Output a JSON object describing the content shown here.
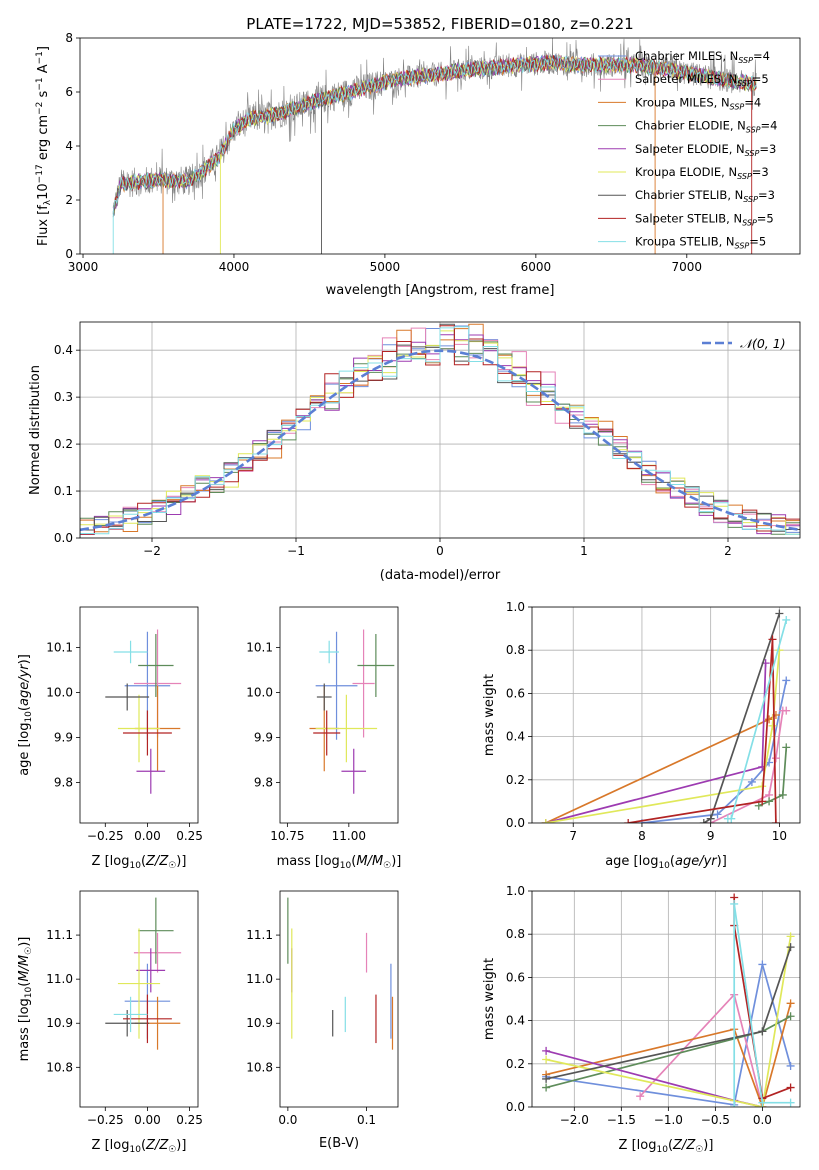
{
  "title": "PLATE=1722, MJD=53852, FIBERID=0180, z=0.221",
  "legend_entries": [
    {
      "text": "Chabrier MILES, N",
      "sub": "SSP",
      "tail": "=4",
      "color": "#6f8fdc"
    },
    {
      "text": "Salpeter MILES, N",
      "sub": "SSP",
      "tail": "=5",
      "color": "#e583b8"
    },
    {
      "text": "Kroupa MILES, N",
      "sub": "SSP",
      "tail": "=4",
      "color": "#d8782a"
    },
    {
      "text": "Chabrier ELODIE, N",
      "sub": "SSP",
      "tail": "=4",
      "color": "#5e8c5a"
    },
    {
      "text": "Salpeter ELODIE, N",
      "sub": "SSP",
      "tail": "=3",
      "color": "#9d3bb1"
    },
    {
      "text": "Kroupa ELODIE, N",
      "sub": "SSP",
      "tail": "=3",
      "color": "#e0e85a"
    },
    {
      "text": "Chabrier STELIB, N",
      "sub": "SSP",
      "tail": "=3",
      "color": "#555555"
    },
    {
      "text": "Salpeter STELIB, N",
      "sub": "SSP",
      "tail": "=5",
      "color": "#b22323"
    },
    {
      "text": "Kroupa STELIB, N",
      "sub": "SSP",
      "tail": "=5",
      "color": "#84dfe6"
    }
  ],
  "chart_data": [
    {
      "id": "spectrum",
      "type": "line",
      "title": "PLATE=1722, MJD=53852, FIBERID=0180, z=0.221",
      "xlabel": "wavelength [Angstrom, rest frame]",
      "ylabel": "Flux [f_λ 10^-17 erg cm^-2 s^-1 A^-1]",
      "xlim": [
        2980,
        7750
      ],
      "ylim": [
        0,
        8
      ],
      "xticks": [
        3000,
        4000,
        5000,
        6000,
        7000
      ],
      "yticks": [
        0,
        2,
        4,
        6,
        8
      ],
      "continuum": {
        "x": [
          3200,
          3250,
          3500,
          3700,
          3800,
          3900,
          4000,
          4100,
          4300,
          4500,
          4700,
          4900,
          5100,
          5300,
          5500,
          5700,
          5900,
          6100,
          6300,
          6500,
          6700,
          6900,
          7100,
          7300,
          7450
        ],
        "y": [
          1.6,
          2.6,
          2.75,
          2.7,
          3.1,
          3.6,
          4.6,
          5.0,
          5.2,
          5.6,
          5.9,
          6.2,
          6.5,
          6.6,
          6.8,
          6.9,
          7.0,
          7.1,
          7.0,
          7.0,
          7.0,
          6.8,
          6.6,
          6.4,
          6.3
        ]
      }
    },
    {
      "id": "residuals",
      "type": "step",
      "xlabel": "(data-model)/error",
      "ylabel": "Normed distribution",
      "xlim": [
        -2.5,
        2.5
      ],
      "ylim": [
        0,
        0.46
      ],
      "xticks": [
        -2,
        -1,
        0,
        1,
        2
      ],
      "yticks": [
        0.0,
        0.1,
        0.2,
        0.3,
        0.4
      ],
      "gauss_label": "𝒩(0, 1)",
      "grid": true
    },
    {
      "id": "age_vs_Z",
      "type": "errorbar",
      "xlabel": "Z [log10(Z/Z☉)]",
      "ylabel": "age  [log10(age/yr)]",
      "xlim": [
        -0.4,
        0.3
      ],
      "ylim": [
        9.71,
        10.19
      ],
      "xticks": [
        -0.25,
        0.0,
        0.25
      ],
      "yticks": [
        9.8,
        9.9,
        10.0,
        10.1
      ],
      "points": [
        {
          "x": 0.0,
          "xerr": 0.27,
          "y": 10.015,
          "yerr": 0.24
        },
        {
          "x": 0.06,
          "xerr": 0.28,
          "y": 10.02,
          "yerr": 0.24
        },
        {
          "x": 0.06,
          "xerr": 0.27,
          "y": 9.92,
          "yerr": 0.19
        },
        {
          "x": 0.05,
          "xerr": 0.21,
          "y": 10.06,
          "yerr": 0.14
        },
        {
          "x": 0.02,
          "xerr": 0.17,
          "y": 9.825,
          "yerr": 0.1
        },
        {
          "x": -0.05,
          "xerr": 0.25,
          "y": 9.92,
          "yerr": 0.15
        },
        {
          "x": -0.12,
          "xerr": 0.26,
          "y": 9.99,
          "yerr": 0.06
        },
        {
          "x": 0.0,
          "xerr": 0.29,
          "y": 9.91,
          "yerr": 0.1
        },
        {
          "x": -0.1,
          "xerr": 0.2,
          "y": 10.09,
          "yerr": 0.05
        }
      ]
    },
    {
      "id": "age_vs_mass",
      "type": "errorbar",
      "xlabel": "mass [log10(M/M☉)]",
      "ylabel": "",
      "xlim": [
        10.72,
        11.2
      ],
      "ylim": [
        9.71,
        10.19
      ],
      "xticks": [
        10.75,
        11.0
      ],
      "yticks": [
        9.8,
        9.9,
        10.0,
        10.1
      ],
      "points": [
        {
          "x": 10.95,
          "xerr": 0.17,
          "y": 10.015,
          "yerr": 0.24
        },
        {
          "x": 11.06,
          "xerr": 0.09,
          "y": 10.02,
          "yerr": 0.24
        },
        {
          "x": 10.9,
          "xerr": 0.12,
          "y": 9.92,
          "yerr": 0.19
        },
        {
          "x": 11.11,
          "xerr": 0.15,
          "y": 10.06,
          "yerr": 0.14
        },
        {
          "x": 11.02,
          "xerr": 0.1,
          "y": 9.825,
          "yerr": 0.1
        },
        {
          "x": 10.99,
          "xerr": 0.25,
          "y": 9.92,
          "yerr": 0.15
        },
        {
          "x": 10.9,
          "xerr": 0.06,
          "y": 9.99,
          "yerr": 0.06
        },
        {
          "x": 10.91,
          "xerr": 0.11,
          "y": 9.91,
          "yerr": 0.1
        },
        {
          "x": 10.92,
          "xerr": 0.08,
          "y": 10.09,
          "yerr": 0.05
        }
      ]
    },
    {
      "id": "weight_vs_age",
      "type": "line",
      "xlabel": "age  [log10(age/yr)]",
      "ylabel": "mass weight",
      "xlim": [
        6.4,
        10.3
      ],
      "ylim": [
        0,
        1
      ],
      "xticks": [
        7,
        8,
        9,
        10
      ],
      "yticks": [
        0.0,
        0.2,
        0.4,
        0.6,
        0.8,
        1.0
      ],
      "grid": true,
      "series": [
        {
          "x": [
            8.0,
            9.1,
            9.6,
            9.85,
            10.1
          ],
          "y": [
            0.0,
            0.04,
            0.19,
            0.28,
            0.66
          ]
        },
        {
          "x": [
            9.0,
            9.85,
            9.95,
            10.05,
            10.1
          ],
          "y": [
            0.0,
            0.13,
            0.3,
            0.52,
            0.52
          ]
        },
        {
          "x": [
            6.6,
            9.85,
            9.95
          ],
          "y": [
            0.0,
            0.48,
            0.5
          ]
        },
        {
          "x": [
            9.7,
            9.85,
            10.05,
            10.1
          ],
          "y": [
            0.08,
            0.1,
            0.13,
            0.35
          ]
        },
        {
          "x": [
            6.6,
            9.75,
            9.8
          ],
          "y": [
            0.0,
            0.26,
            0.74
          ]
        },
        {
          "x": [
            6.6,
            9.75,
            9.9,
            10.0
          ],
          "y": [
            0.0,
            0.17,
            0.45,
            0.8
          ]
        },
        {
          "x": [
            8.9,
            9.0,
            10.0
          ],
          "y": [
            0.0,
            0.02,
            0.97
          ]
        },
        {
          "x": [
            7.8,
            9.75,
            9.9,
            9.95
          ],
          "y": [
            0.0,
            0.1,
            0.85,
            0.0
          ]
        },
        {
          "x": [
            9.25,
            9.3,
            10.1
          ],
          "y": [
            0.02,
            0.02,
            0.94
          ]
        }
      ]
    },
    {
      "id": "mass_vs_Z",
      "type": "errorbar",
      "xlabel": "Z [log10(Z/Z☉)]",
      "ylabel": "mass [log10(M/M☉)]",
      "xlim": [
        -0.4,
        0.3
      ],
      "ylim": [
        10.71,
        11.2
      ],
      "xticks": [
        -0.25,
        0.0,
        0.25
      ],
      "yticks": [
        10.8,
        10.9,
        11.0,
        11.1
      ],
      "points": [
        {
          "x": 0.0,
          "xerr": 0.27,
          "y": 10.95,
          "yerr": 0.17
        },
        {
          "x": 0.06,
          "xerr": 0.28,
          "y": 11.06,
          "yerr": 0.09
        },
        {
          "x": 0.06,
          "xerr": 0.27,
          "y": 10.9,
          "yerr": 0.12
        },
        {
          "x": 0.05,
          "xerr": 0.21,
          "y": 11.11,
          "yerr": 0.15
        },
        {
          "x": 0.02,
          "xerr": 0.17,
          "y": 11.02,
          "yerr": 0.1
        },
        {
          "x": -0.05,
          "xerr": 0.25,
          "y": 10.99,
          "yerr": 0.25
        },
        {
          "x": -0.12,
          "xerr": 0.26,
          "y": 10.9,
          "yerr": 0.06
        },
        {
          "x": 0.0,
          "xerr": 0.29,
          "y": 10.91,
          "yerr": 0.11
        },
        {
          "x": -0.1,
          "xerr": 0.2,
          "y": 10.92,
          "yerr": 0.08
        }
      ]
    },
    {
      "id": "mass_vs_EBV",
      "type": "errorbar",
      "xlabel": "E(B-V)",
      "ylabel": "",
      "xlim": [
        -0.01,
        0.14
      ],
      "ylim": [
        10.71,
        11.2
      ],
      "xticks": [
        0.0,
        0.1
      ],
      "yticks": [
        10.8,
        10.9,
        11.0,
        11.1
      ],
      "points": [
        {
          "x": 0.131,
          "y": 10.95,
          "yerr": 0.17
        },
        {
          "x": 0.1,
          "y": 11.06,
          "yerr": 0.09
        },
        {
          "x": 0.133,
          "y": 10.9,
          "yerr": 0.12
        },
        {
          "x": 0.0,
          "y": 11.11,
          "yerr": 0.15
        },
        {
          "x": 0.005,
          "y": 11.02,
          "yerr": 0.1
        },
        {
          "x": 0.005,
          "y": 10.99,
          "yerr": 0.25
        },
        {
          "x": 0.057,
          "y": 10.9,
          "yerr": 0.06
        },
        {
          "x": 0.112,
          "y": 10.91,
          "yerr": 0.11
        },
        {
          "x": 0.073,
          "y": 10.92,
          "yerr": 0.08
        }
      ]
    },
    {
      "id": "weight_vs_Z",
      "type": "line",
      "xlabel": "Z [log10(Z/Z☉)]",
      "ylabel": "mass weight",
      "xlim": [
        -2.45,
        0.4
      ],
      "ylim": [
        0,
        1
      ],
      "xticks": [
        -2.0,
        -1.5,
        -1.0,
        -0.5,
        0.0
      ],
      "yticks": [
        0.0,
        0.2,
        0.4,
        0.6,
        0.8,
        1.0
      ],
      "grid": true,
      "series": [
        {
          "x": [
            -2.3,
            -0.3,
            0.0,
            0.3
          ],
          "y": [
            0.14,
            0.01,
            0.66,
            0.19
          ]
        },
        {
          "x": [
            -1.3,
            -0.3,
            0.0
          ],
          "y": [
            0.05,
            0.52,
            0.0
          ]
        },
        {
          "x": [
            -2.3,
            -0.3,
            0.0,
            0.3
          ],
          "y": [
            0.15,
            0.36,
            0.0,
            0.48
          ]
        },
        {
          "x": [
            -2.3,
            0.0,
            0.3
          ],
          "y": [
            0.09,
            0.35,
            0.42
          ]
        },
        {
          "x": [
            -2.3,
            -0.3,
            0.0
          ],
          "y": [
            0.26,
            0.03,
            0.0
          ]
        },
        {
          "x": [
            -2.3,
            0.0,
            0.3
          ],
          "y": [
            0.22,
            0.0,
            0.79
          ]
        },
        {
          "x": [
            -2.3,
            0.0,
            0.3
          ],
          "y": [
            0.13,
            0.35,
            0.74
          ]
        },
        {
          "x": [
            -0.3,
            -0.3,
            0.0,
            0.3
          ],
          "y": [
            0.97,
            0.84,
            0.04,
            0.09
          ]
        },
        {
          "x": [
            -0.3,
            -0.3,
            0.0,
            0.3
          ],
          "y": [
            0.0,
            0.94,
            0.02,
            0.02
          ]
        }
      ]
    }
  ]
}
